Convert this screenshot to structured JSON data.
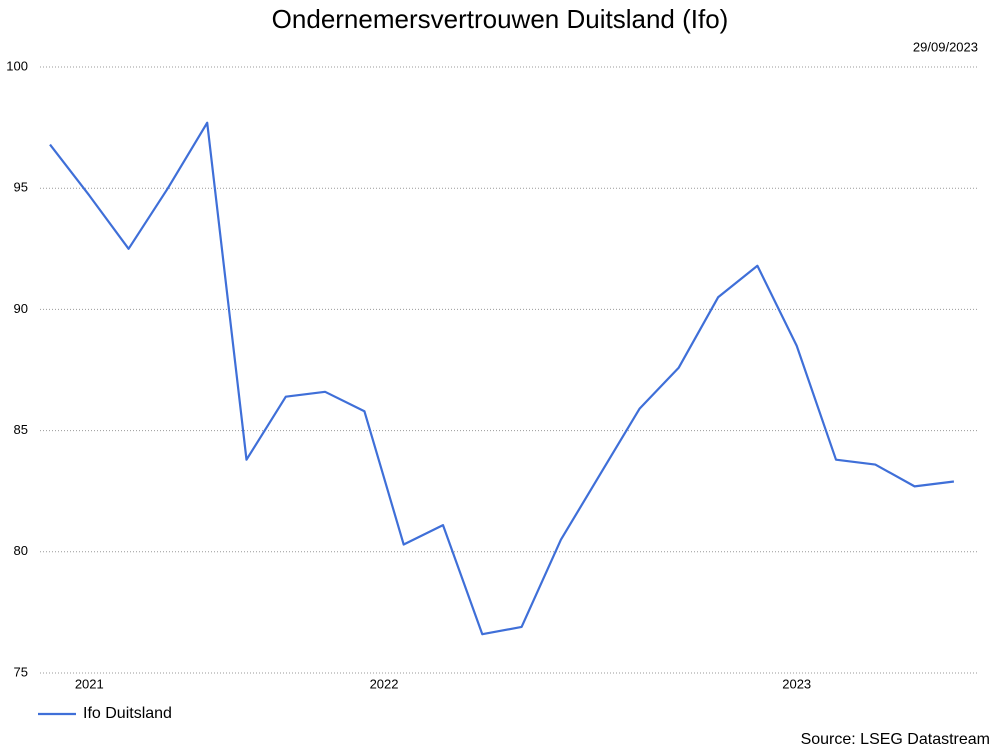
{
  "chart_data": {
    "type": "line",
    "title": "Ondernemersvertrouwen Duitsland (Ifo)",
    "date": "29/09/2023",
    "source": "Source: LSEG Datastream",
    "categories": [
      null,
      null,
      null,
      null,
      null,
      null,
      null,
      null,
      null,
      null,
      null,
      null,
      null,
      null,
      null,
      null,
      null,
      null,
      null,
      null,
      null,
      null,
      null,
      null
    ],
    "series": [
      {
        "name": "Ifo Duitsland",
        "color": "#3f6fd8",
        "values": [
          96.8,
          94.7,
          92.5,
          95.0,
          97.7,
          83.8,
          86.4,
          86.6,
          85.8,
          80.3,
          81.1,
          76.6,
          76.9,
          80.5,
          83.2,
          85.9,
          87.6,
          90.5,
          91.8,
          88.5,
          83.8,
          83.6,
          82.7,
          82.9
        ]
      }
    ],
    "xticks": [
      {
        "value": 1,
        "label": "2021"
      },
      {
        "value": 8.5,
        "label": "2022"
      },
      {
        "value": 19,
        "label": "2023"
      }
    ],
    "ylim": [
      75,
      100
    ],
    "yticks": [
      75,
      80,
      85,
      90,
      95,
      100
    ],
    "grid": true
  }
}
